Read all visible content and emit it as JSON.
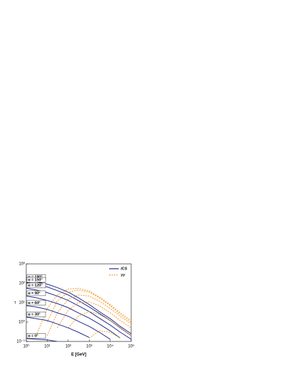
{
  "chart_data": {
    "type": "line",
    "x_label": "E [GeV]",
    "y_label": "τ",
    "log_x": true,
    "log_y": true,
    "xlim": [
      1,
      100000
    ],
    "ylim": [
      0.1,
      1000
    ],
    "xticks": [
      {
        "value": 1,
        "label": "10⁰"
      },
      {
        "value": 10,
        "label": "10¹"
      },
      {
        "value": 100,
        "label": "10²"
      },
      {
        "value": 1000,
        "label": "10³"
      },
      {
        "value": 10000,
        "label": "10⁴"
      },
      {
        "value": 100000,
        "label": "10⁵"
      }
    ],
    "yticks": [
      {
        "value": 0.1,
        "label": "10⁻¹"
      },
      {
        "value": 1,
        "label": "10⁰"
      },
      {
        "value": 10,
        "label": "10¹"
      },
      {
        "value": 100,
        "label": "10²"
      },
      {
        "value": 1000,
        "label": "10³"
      }
    ],
    "legend": [
      {
        "name": "ICS",
        "color": "#1f2a8c",
        "dash": false
      },
      {
        "name": "γγ",
        "color": "#f29a2e",
        "dash": true
      }
    ],
    "x": [
      1,
      3,
      10,
      30,
      100,
      300,
      1000,
      3000,
      10000,
      30000,
      100000
    ],
    "series": [
      {
        "name": "α = 180°",
        "ics": [
          150,
          120,
          90,
          60,
          35,
          18,
          8,
          3.5,
          1.5,
          0.6,
          0.25
        ],
        "gg": [
          null,
          0.2,
          5,
          25,
          50,
          55,
          40,
          20,
          8,
          3,
          1.2
        ]
      },
      {
        "name": "α = 150°",
        "ics": [
          110,
          90,
          65,
          42,
          25,
          13,
          6,
          2.8,
          1.2,
          0.5,
          0.2
        ],
        "gg": [
          null,
          null,
          1,
          12,
          35,
          45,
          35,
          18,
          7,
          2.5,
          1
        ]
      },
      {
        "name": "α = 120°",
        "ics": [
          55,
          45,
          33,
          22,
          13,
          7,
          3.5,
          1.6,
          0.7,
          0.3,
          0.13
        ],
        "gg": [
          null,
          null,
          0.2,
          3,
          15,
          25,
          22,
          12,
          5,
          2,
          0.8
        ]
      },
      {
        "name": "α = 90°",
        "ics": [
          22,
          18,
          13,
          9,
          5.5,
          3,
          1.6,
          0.8,
          0.35,
          0.15,
          null
        ],
        "gg": [
          null,
          null,
          null,
          0.5,
          4,
          10,
          11,
          7,
          3,
          1.2,
          0.5
        ]
      },
      {
        "name": "α = 60°",
        "ics": [
          7,
          6,
          4.5,
          3,
          2,
          1.1,
          0.6,
          0.3,
          0.13,
          null,
          null
        ],
        "gg": [
          null,
          null,
          null,
          null,
          0.5,
          2,
          3.5,
          2.5,
          1.2,
          0.5,
          0.2
        ]
      },
      {
        "name": "α = 30°",
        "ics": [
          1.8,
          1.5,
          1.2,
          0.8,
          0.5,
          0.3,
          0.16,
          null,
          null,
          null,
          null
        ],
        "gg": [
          null,
          null,
          null,
          null,
          null,
          null,
          0.15,
          0.35,
          0.3,
          0.15,
          null
        ]
      },
      {
        "name": "α = 0°",
        "ics": [
          0.14,
          0.13,
          0.12,
          0.1,
          null,
          null,
          null,
          null,
          null,
          null,
          null
        ],
        "gg": [
          null,
          null,
          null,
          null,
          null,
          null,
          null,
          null,
          null,
          null,
          null
        ]
      }
    ]
  }
}
